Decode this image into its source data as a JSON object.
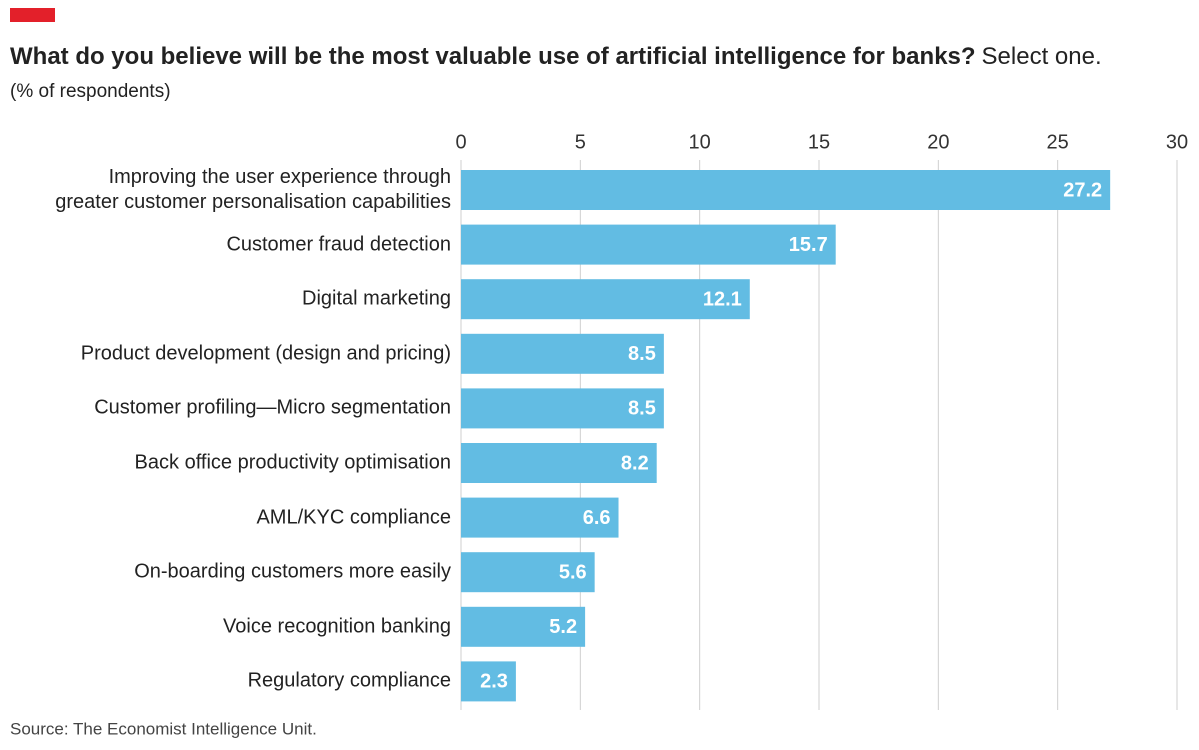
{
  "chart_data": {
    "type": "bar",
    "orientation": "horizontal",
    "title": "What do you believe will be the most valuable use of artificial intelligence for banks?",
    "title_note": "Select one.",
    "subtitle": "(% of respondents)",
    "source": "Source: The Economist Intelligence Unit.",
    "categories": [
      "Improving the user experience through\ngreater customer personalisation capabilities",
      "Customer fraud detection",
      "Digital marketing",
      "Product development (design and pricing)",
      "Customer profiling—Micro segmentation",
      "Back office productivity optimisation",
      "AML/KYC compliance",
      "On-boarding customers more easily",
      "Voice recognition banking",
      "Regulatory compliance"
    ],
    "values": [
      27.2,
      15.7,
      12.1,
      8.5,
      8.5,
      8.2,
      6.6,
      5.6,
      5.2,
      2.3
    ],
    "color": "#62bce3",
    "xlim": [
      0,
      30
    ],
    "xticks": [
      0,
      5,
      10,
      15,
      20,
      25,
      30
    ],
    "grid": true
  }
}
